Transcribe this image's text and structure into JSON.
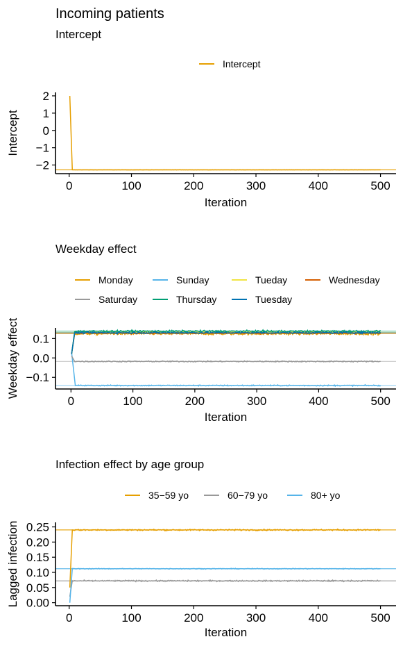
{
  "figure": {
    "title": "Incoming patients"
  },
  "chart_data": [
    {
      "type": "line",
      "title": "Intercept",
      "xlabel": "Iteration",
      "ylabel": "Intercept",
      "xlim": [
        -22,
        525
      ],
      "ylim": [
        -2.5,
        2.2
      ],
      "xticks": [
        0,
        100,
        200,
        300,
        400,
        500
      ],
      "xtick_labels": [
        "0",
        "100",
        "200",
        "300",
        "400",
        "500"
      ],
      "yticks": [
        2,
        1,
        0,
        -1,
        -2
      ],
      "ytick_labels": [
        "2",
        "1",
        "0",
        "−1",
        "−2"
      ],
      "legend_position": "top",
      "series": [
        {
          "name": "Intercept",
          "color": "#E69F00",
          "start": 2.0,
          "level": -2.28,
          "noise": 0.004,
          "converge_iter": 4,
          "reference": -2.28
        }
      ]
    },
    {
      "type": "line",
      "title": "Weekday effect",
      "xlabel": "Iteration",
      "ylabel": "Weekday effect",
      "xlim": [
        -25,
        525
      ],
      "ylim": [
        -0.16,
        0.155
      ],
      "xticks": [
        0,
        100,
        200,
        300,
        400,
        500
      ],
      "xtick_labels": [
        "0",
        "100",
        "200",
        "300",
        "400",
        "500"
      ],
      "yticks": [
        0.1,
        0.0,
        -0.1
      ],
      "ytick_labels": [
        "0.1",
        "0.0",
        "−0.1"
      ],
      "legend_position": "top",
      "series": [
        {
          "name": "Monday",
          "color": "#E69F00",
          "start": 0.02,
          "level": 0.125,
          "noise": 0.004,
          "converge_iter": 5,
          "reference": 0.125
        },
        {
          "name": "Sunday",
          "color": "#56B4E9",
          "start": 0.03,
          "level": -0.142,
          "noise": 0.002,
          "converge_iter": 6,
          "reference": -0.142
        },
        {
          "name": "Tueday",
          "color": "#F0E442",
          "start": 0.02,
          "level": 0.132,
          "noise": 0.003,
          "converge_iter": 5,
          "reference": 0.132
        },
        {
          "name": "Wednesday",
          "color": "#D55E00",
          "start": 0.02,
          "level": 0.128,
          "noise": 0.003,
          "converge_iter": 5,
          "reference": 0.128
        },
        {
          "name": "Saturday",
          "color": "#999999",
          "start": 0.01,
          "level": -0.018,
          "noise": 0.002,
          "converge_iter": 5,
          "reference": -0.018
        },
        {
          "name": "Thursday",
          "color": "#009E73",
          "start": 0.02,
          "level": 0.138,
          "noise": 0.003,
          "converge_iter": 5,
          "reference": 0.138
        },
        {
          "name": "Tuesday",
          "color": "#0072B2",
          "start": 0.02,
          "level": 0.13,
          "noise": 0.003,
          "converge_iter": 5,
          "reference": 0.13
        }
      ]
    },
    {
      "type": "line",
      "title": "Infection effect by age group",
      "xlabel": "Iteration",
      "ylabel": "Lagged infection",
      "xlim": [
        -22,
        525
      ],
      "ylim": [
        -0.01,
        0.265
      ],
      "xticks": [
        0,
        100,
        200,
        300,
        400,
        500
      ],
      "xtick_labels": [
        "0",
        "100",
        "200",
        "300",
        "400",
        "500"
      ],
      "yticks": [
        0.25,
        0.2,
        0.15,
        0.1,
        0.05,
        0.0
      ],
      "ytick_labels": [
        "0.25",
        "0.20",
        "0.15",
        "0.10",
        "0.05",
        "0.00"
      ],
      "legend_position": "top",
      "series": [
        {
          "name": "35−59 yo",
          "color": "#E69F00",
          "start": 0.05,
          "level": 0.24,
          "noise": 0.0015,
          "converge_iter": 4,
          "reference": 0.24
        },
        {
          "name": "60−79 yo",
          "color": "#999999",
          "start": 0.02,
          "level": 0.072,
          "noise": 0.0015,
          "converge_iter": 4,
          "reference": 0.072
        },
        {
          "name": "80+ yo",
          "color": "#56B4E9",
          "start": 0.0,
          "level": 0.112,
          "noise": 0.0008,
          "converge_iter": 4,
          "reference": 0.112
        }
      ]
    }
  ]
}
